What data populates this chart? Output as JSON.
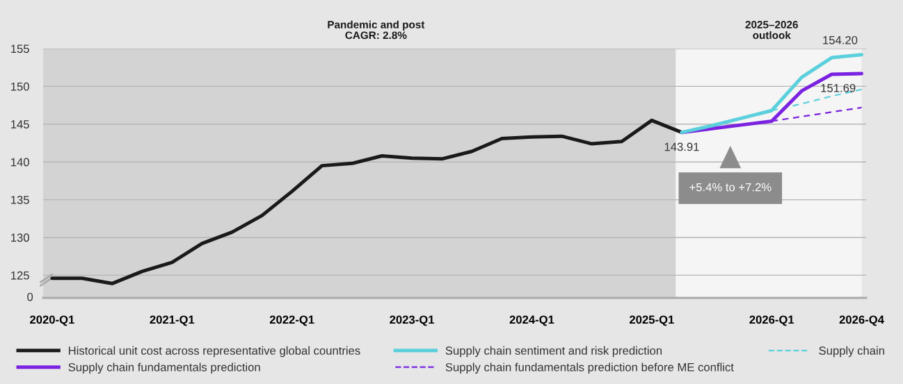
{
  "chart_data": {
    "type": "line",
    "categories": [
      "2020-Q1",
      null,
      null,
      null,
      "2021-Q1",
      null,
      null,
      null,
      "2022-Q1",
      null,
      null,
      null,
      "2023-Q1",
      null,
      null,
      null,
      "2024-Q1",
      null,
      null,
      null,
      "2025-Q1",
      null,
      null,
      null,
      "2026-Q1",
      null,
      null,
      "2026-Q4"
    ],
    "series": [
      {
        "name": "Historical unit cost across representative global countries",
        "color": "#1a1a1a",
        "line_style": "solid",
        "values": [
          124.6,
          124.6,
          123.9,
          125.5,
          126.7,
          129.2,
          130.7,
          132.9,
          136.1,
          139.5,
          139.8,
          140.8,
          140.5,
          140.4,
          141.4,
          143.1,
          143.3,
          143.4,
          142.4,
          142.7,
          145.5,
          143.91,
          null,
          null,
          null,
          null,
          null,
          null
        ],
        "value_labels": [
          null,
          null,
          null,
          null,
          null,
          null,
          null,
          null,
          null,
          null,
          null,
          null,
          null,
          null,
          null,
          null,
          null,
          null,
          null,
          null,
          null,
          "143.91",
          null,
          null,
          null,
          null,
          null,
          null
        ]
      },
      {
        "name": "Supply chain fundamentals prediction",
        "color": "#7a22e0",
        "line_style": "solid",
        "values": [
          null,
          null,
          null,
          null,
          null,
          null,
          null,
          null,
          null,
          null,
          null,
          null,
          null,
          null,
          null,
          null,
          null,
          null,
          null,
          null,
          null,
          143.91,
          144.4,
          144.9,
          145.4,
          149.4,
          151.6,
          151.69
        ],
        "value_labels": [
          null,
          null,
          null,
          null,
          null,
          null,
          null,
          null,
          null,
          null,
          null,
          null,
          null,
          null,
          null,
          null,
          null,
          null,
          null,
          null,
          null,
          null,
          null,
          null,
          null,
          null,
          null,
          "151.69"
        ]
      },
      {
        "name": "Supply chain sentiment and risk prediction",
        "color": "#5bd0dc",
        "line_style": "solid",
        "values": [
          null,
          null,
          null,
          null,
          null,
          null,
          null,
          null,
          null,
          null,
          null,
          null,
          null,
          null,
          null,
          null,
          null,
          null,
          null,
          null,
          null,
          143.91,
          144.8,
          145.8,
          146.8,
          151.2,
          153.8,
          154.2
        ],
        "value_labels": [
          null,
          null,
          null,
          null,
          null,
          null,
          null,
          null,
          null,
          null,
          null,
          null,
          null,
          null,
          null,
          null,
          null,
          null,
          null,
          null,
          null,
          null,
          null,
          null,
          null,
          null,
          null,
          "154.20"
        ]
      },
      {
        "name": "Supply chain fundamentals prediction before ME conflict",
        "color": "#7a22e0",
        "line_style": "dashed",
        "values": [
          null,
          null,
          null,
          null,
          null,
          null,
          null,
          null,
          null,
          null,
          null,
          null,
          null,
          null,
          null,
          null,
          null,
          null,
          null,
          null,
          null,
          null,
          null,
          null,
          145.4,
          146.0,
          146.6,
          147.2
        ]
      },
      {
        "name": "Supply chain",
        "color": "#5bd0dc",
        "line_style": "dashed",
        "values": [
          null,
          null,
          null,
          null,
          null,
          null,
          null,
          null,
          null,
          null,
          null,
          null,
          null,
          null,
          null,
          null,
          null,
          null,
          null,
          null,
          null,
          null,
          null,
          null,
          146.8,
          147.7,
          148.7,
          149.6
        ]
      }
    ],
    "ylim": [
      122,
      155
    ],
    "yticks": [
      125,
      130,
      135,
      140,
      145,
      150,
      155
    ],
    "annotations": [
      "Pandemic and post\nCAGR: 2.8%",
      "2025–2026\noutlook",
      "+5.4% to +7.2%",
      "0"
    ],
    "grid": "y",
    "legend": "bottom",
    "marker": "none"
  }
}
